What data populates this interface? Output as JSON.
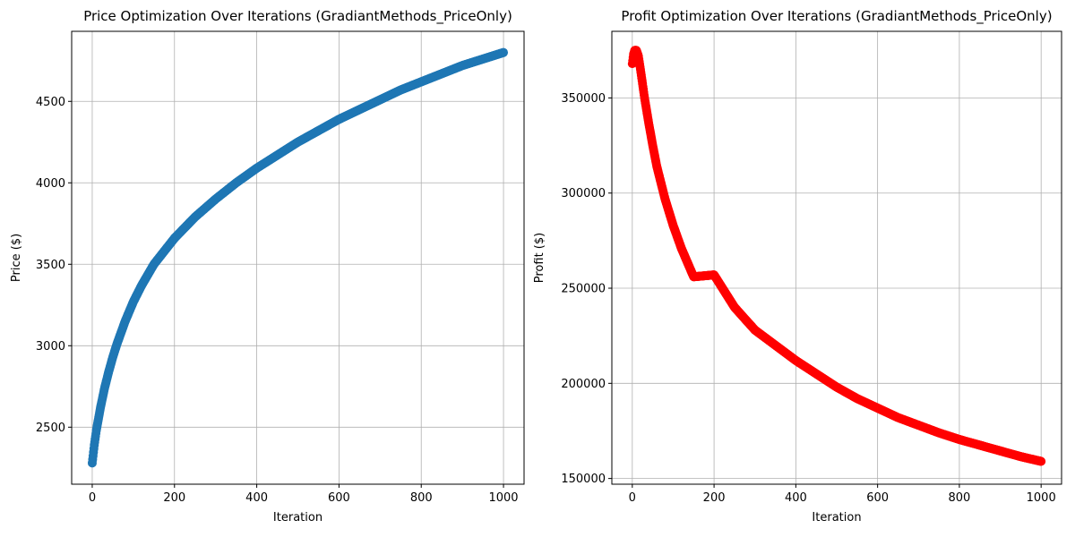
{
  "chart_data": [
    {
      "type": "scatter",
      "title": "Price Optimization Over Iterations (GradiantMethods_PriceOnly)",
      "xlabel": "Iteration",
      "ylabel": "Price ($)",
      "xlim": [
        -50,
        1050
      ],
      "ylim": [
        2150,
        4930
      ],
      "xticks": [
        0,
        200,
        400,
        600,
        800,
        1000
      ],
      "yticks": [
        2500,
        3000,
        3500,
        4000,
        4500
      ],
      "grid": true,
      "color": "#1f77b4",
      "series": [
        {
          "x": [
            0,
            5,
            10,
            20,
            30,
            40,
            50,
            60,
            80,
            100,
            120,
            150,
            200,
            250,
            300,
            350,
            400,
            450,
            500,
            550,
            600,
            650,
            700,
            750,
            800,
            850,
            900,
            950,
            1000
          ],
          "values": [
            2280,
            2390,
            2480,
            2620,
            2740,
            2840,
            2930,
            3010,
            3150,
            3270,
            3370,
            3500,
            3660,
            3790,
            3900,
            4000,
            4090,
            4170,
            4250,
            4320,
            4390,
            4450,
            4510,
            4570,
            4620,
            4670,
            4720,
            4760,
            4800
          ]
        }
      ]
    },
    {
      "type": "scatter",
      "title": "Profit Optimization Over Iterations (GradiantMethods_PriceOnly)",
      "xlabel": "Iteration",
      "ylabel": "Profit ($)",
      "xlim": [
        -50,
        1050
      ],
      "ylim": [
        147000,
        385000
      ],
      "xticks": [
        0,
        200,
        400,
        600,
        800,
        1000
      ],
      "yticks": [
        150000,
        200000,
        250000,
        300000,
        350000
      ],
      "grid": true,
      "color": "#ff0000",
      "series": [
        {
          "x": [
            0,
            3,
            6,
            10,
            15,
            20,
            30,
            40,
            50,
            60,
            80,
            100,
            120,
            150,
            200,
            250,
            300,
            350,
            400,
            450,
            500,
            550,
            600,
            650,
            700,
            750,
            800,
            850,
            900,
            950,
            1000
          ],
          "values": [
            368000,
            373000,
            375000,
            375000,
            372000,
            365000,
            350000,
            337000,
            325000,
            314000,
            297000,
            283000,
            271000,
            256000,
            257000,
            240000,
            228000,
            220000,
            212000,
            205000,
            198000,
            192000,
            187000,
            182000,
            178000,
            174000,
            170500,
            167500,
            164500,
            161500,
            159000
          ]
        }
      ]
    }
  ]
}
